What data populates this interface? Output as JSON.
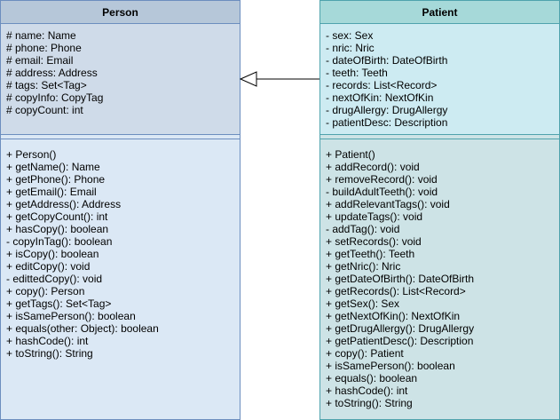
{
  "person": {
    "name": "Person",
    "attributes": [
      "# name: Name",
      "# phone: Phone",
      "# email: Email",
      "# address: Address",
      "# tags: Set<Tag>",
      "# copyInfo: CopyTag",
      "# copyCount: int"
    ],
    "operations": [
      "+ Person()",
      "+ getName(): Name",
      "+ getPhone(): Phone",
      "+ getEmail(): Email",
      "+ getAddress(): Address",
      "+ getCopyCount(): int",
      "+ hasCopy(): boolean",
      "- copyInTag(): boolean",
      "+ isCopy(): boolean",
      "+ editCopy(): void",
      "- edittedCopy(): void",
      "+ copy(): Person",
      "+ getTags(): Set<Tag>",
      "+ isSamePerson(): boolean",
      "+ equals(other: Object): boolean",
      "+ hashCode(): int",
      "+ toString(): String"
    ]
  },
  "patient": {
    "name": "Patient",
    "attributes": [
      "- sex: Sex",
      "- nric: Nric",
      "- dateOfBirth: DateOfBirth",
      "- teeth: Teeth",
      "- records: List<Record>",
      "- nextOfKin: NextOfKin",
      "- drugAllergy: DrugAllergy",
      "- patientDesc: Description"
    ],
    "operations": [
      "+ Patient()",
      "+ addRecord(): void",
      "+ removeRecord(): void",
      "- buildAdultTeeth(): void",
      "+ addRelevantTags(): void",
      "+ updateTags(): void",
      "- addTag(): void",
      "+ setRecords(): void",
      "+ getTeeth(): Teeth",
      "+ getNric(): Nric",
      "+ getDateOfBirth(): DateOfBirth",
      "+ getRecords(): List<Record>",
      "+ getSex(): Sex",
      "+ getNextOfKin(): NextOfKin",
      "+ getDrugAllergy(): DrugAllergy",
      "+ getPatientDesc(): Description",
      "+ copy(): Patient",
      "+ isSamePerson(): boolean",
      "+ equals(): boolean",
      "+ hashCode(): int",
      "+ toString(): String"
    ]
  },
  "relationship": {
    "type": "generalization",
    "from": "Patient",
    "to": "Person"
  }
}
